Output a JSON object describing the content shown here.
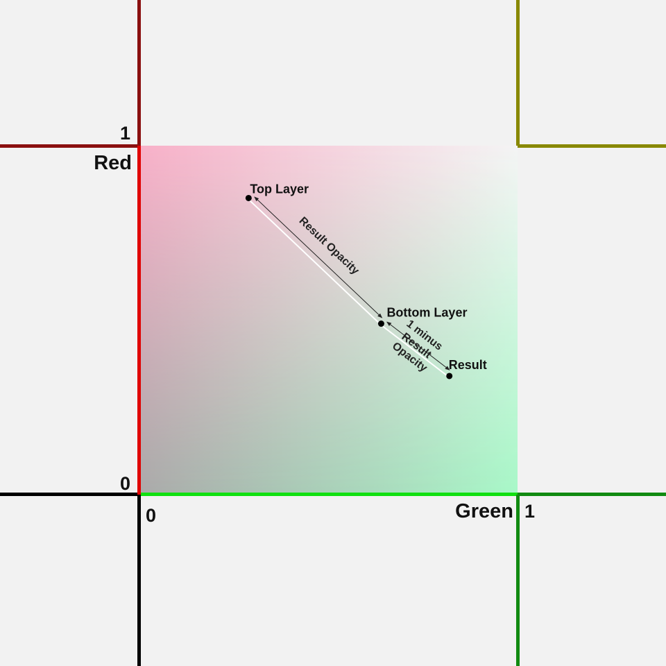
{
  "axes": {
    "red": {
      "name": "Red",
      "min_label": "0",
      "max_label": "1",
      "color": "#e00000"
    },
    "green": {
      "name": "Green",
      "min_label": "0",
      "max_label": "1",
      "color": "#10e010"
    }
  },
  "points": {
    "top_layer": {
      "label": "Top Layer",
      "red": 0.85,
      "green": 0.29
    },
    "bottom_layer": {
      "label": "Bottom Layer",
      "red": 0.49,
      "green": 0.64
    },
    "result": {
      "label": "Result",
      "red": 0.34,
      "green": 0.82
    }
  },
  "dimensions": {
    "result_opacity": {
      "label": "Result Opacity"
    },
    "one_minus": {
      "label_lines": [
        "1 minus",
        "Result",
        "Opacity"
      ]
    }
  },
  "colors": {
    "background": "#f2f2f2",
    "corner_origin": "#aaaaaa",
    "corner_red": "#f8b0c8",
    "corner_green": "#a8f8c8",
    "corner_both": "#f2f2f2",
    "dim_line": "#ffffff",
    "dim_arrow": "#222222",
    "point": "#000000"
  }
}
